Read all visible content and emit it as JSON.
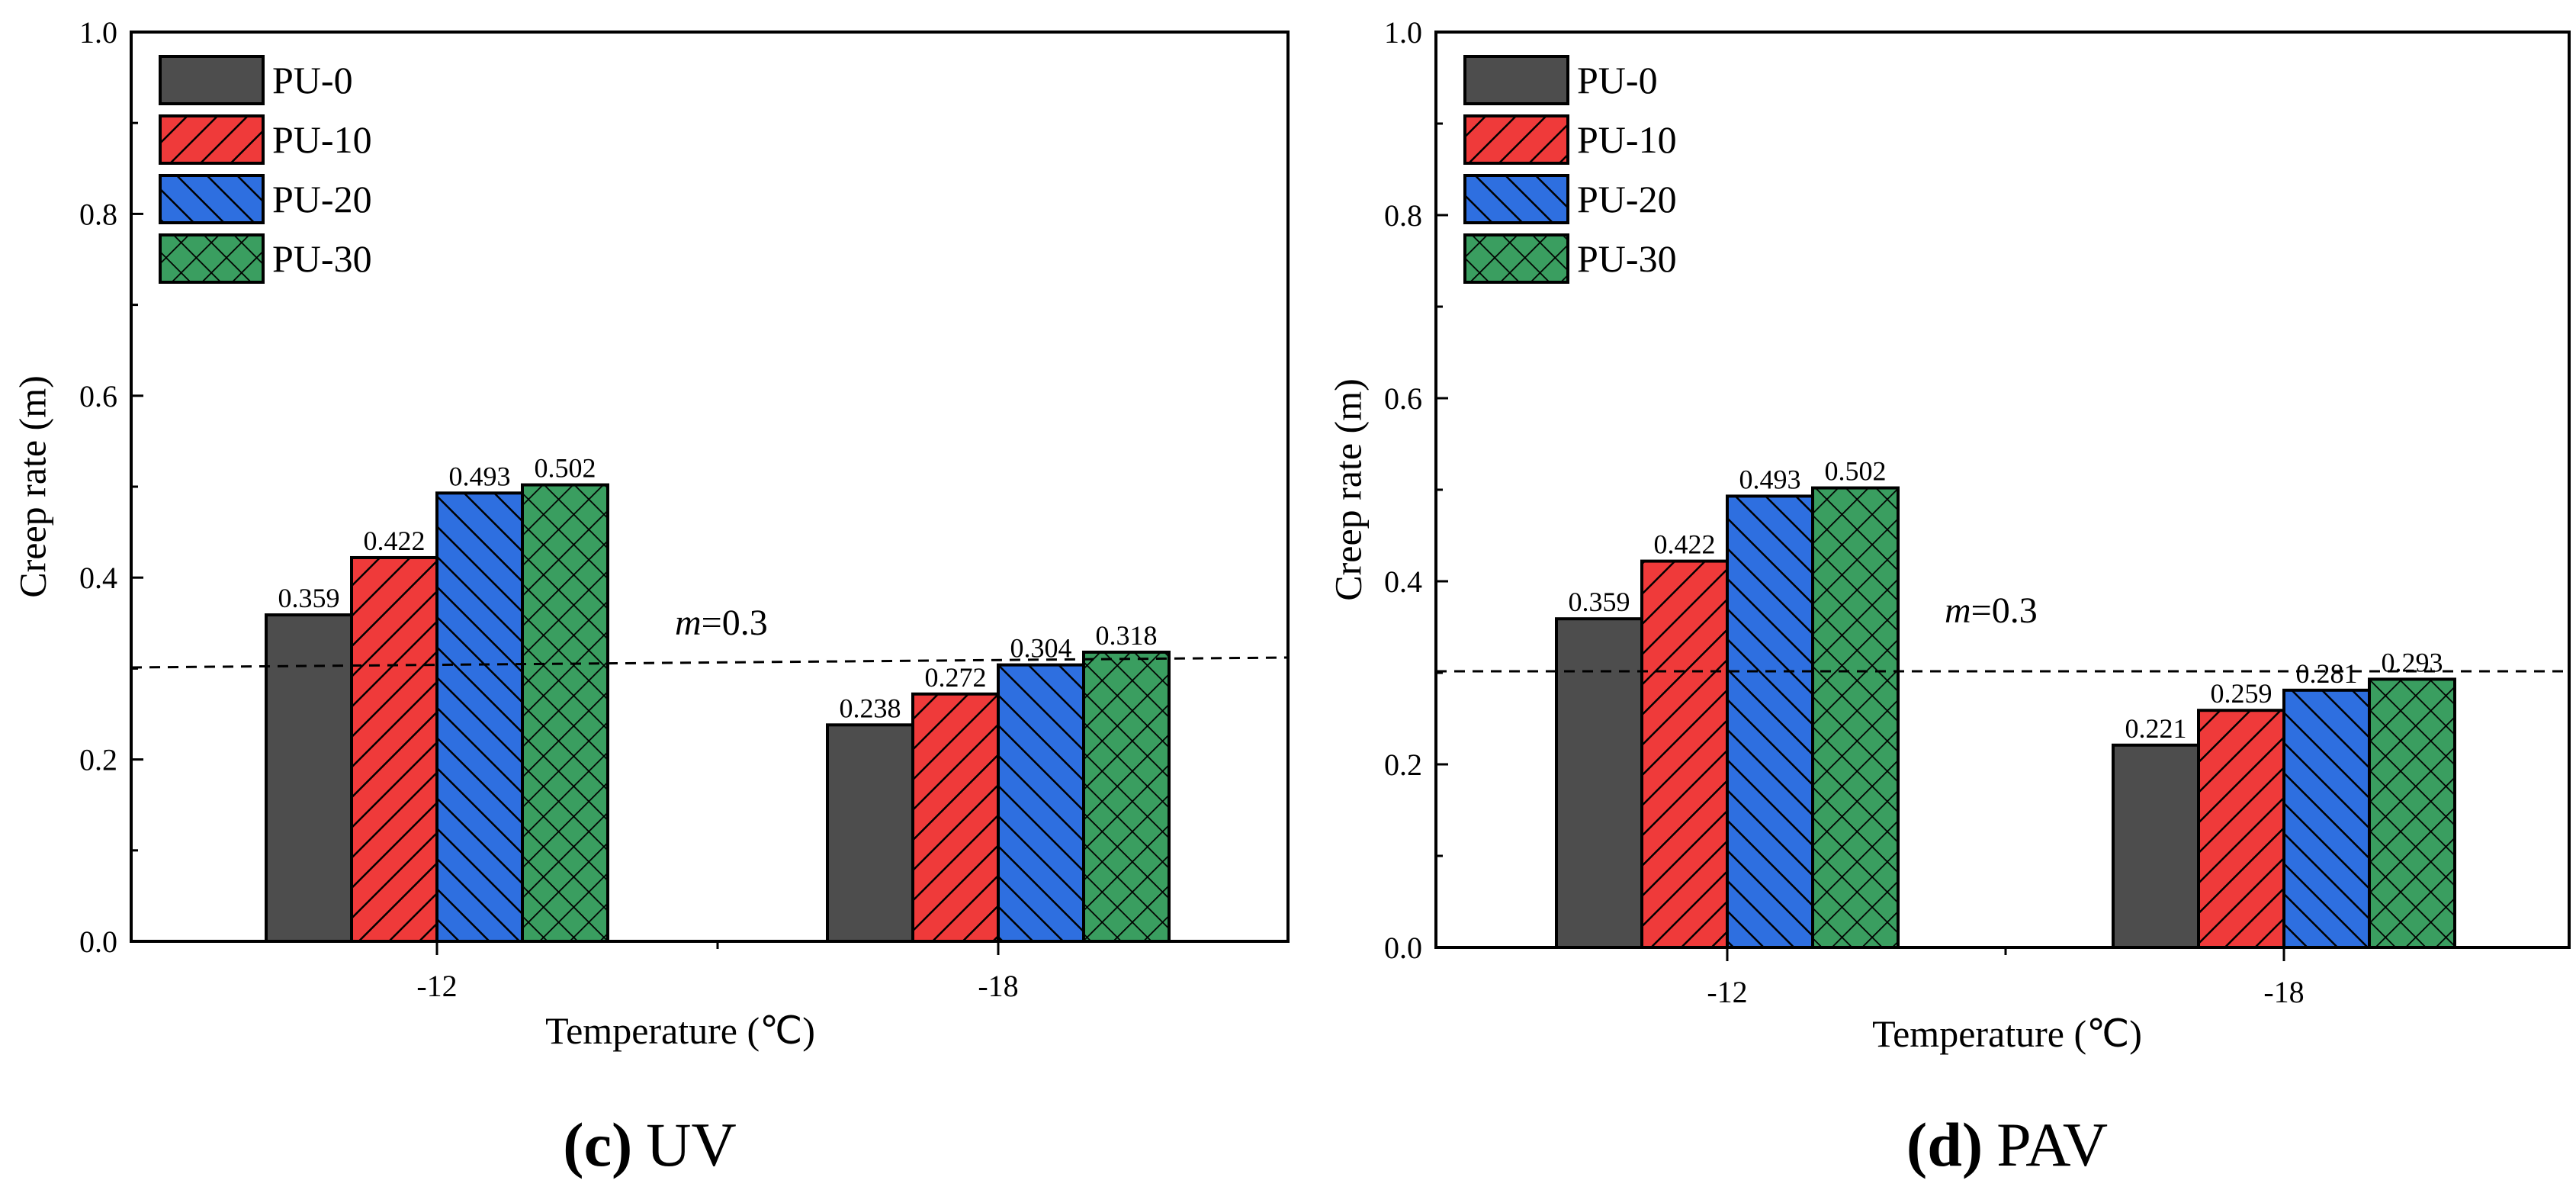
{
  "legend": {
    "items": [
      {
        "name": "PU-0",
        "color": "#4d4d4d",
        "pattern": "solid"
      },
      {
        "name": "PU-10",
        "color": "#ef3a3a",
        "pattern": "hatch-right"
      },
      {
        "name": "PU-20",
        "color": "#2e6fe0",
        "pattern": "hatch-left"
      },
      {
        "name": "PU-30",
        "color": "#3a9e60",
        "pattern": "crosshatch"
      }
    ]
  },
  "chart_data": [
    {
      "type": "bar",
      "panel": "c",
      "caption_letter": "(c)",
      "caption_text": "UV",
      "categories": [
        "-12",
        "-18"
      ],
      "series": [
        {
          "name": "PU-0",
          "values": [
            0.359,
            0.238
          ],
          "labels": [
            "0.359",
            "0.238"
          ]
        },
        {
          "name": "PU-10",
          "values": [
            0.422,
            0.272
          ],
          "labels": [
            "0.422",
            "0.272"
          ]
        },
        {
          "name": "PU-20",
          "values": [
            0.493,
            0.304
          ],
          "labels": [
            "0.493",
            "0.304"
          ]
        },
        {
          "name": "PU-30",
          "values": [
            0.502,
            0.318
          ],
          "labels": [
            "0.502",
            "0.318"
          ]
        }
      ],
      "xlabel": "Temperature (℃)",
      "ylabel": "Creep rate (m)",
      "ylim": [
        0,
        1.0
      ],
      "yticks": [
        "0.0",
        "0.2",
        "0.4",
        "0.6",
        "0.8",
        "1.0"
      ],
      "reference_line": {
        "value": 0.3,
        "label_italic": "m",
        "label_rest": "=0.3"
      }
    },
    {
      "type": "bar",
      "panel": "d",
      "caption_letter": "(d)",
      "caption_text": "PAV",
      "categories": [
        "-12",
        "-18"
      ],
      "series": [
        {
          "name": "PU-0",
          "values": [
            0.359,
            0.221
          ],
          "labels": [
            "0.359",
            "0.221"
          ]
        },
        {
          "name": "PU-10",
          "values": [
            0.422,
            0.259
          ],
          "labels": [
            "0.422",
            "0.259"
          ]
        },
        {
          "name": "PU-20",
          "values": [
            0.493,
            0.281
          ],
          "labels": [
            "0.493",
            "0.281"
          ]
        },
        {
          "name": "PU-30",
          "values": [
            0.502,
            0.293
          ],
          "labels": [
            "0.502",
            "0.293"
          ]
        }
      ],
      "xlabel": "Temperature (℃)",
      "ylabel": "Creep rate (m)",
      "ylim": [
        0,
        1.0
      ],
      "yticks": [
        "0.0",
        "0.2",
        "0.4",
        "0.6",
        "0.8",
        "1.0"
      ],
      "reference_line": {
        "value": 0.3,
        "label_italic": "m",
        "label_rest": "=0.3"
      }
    }
  ]
}
